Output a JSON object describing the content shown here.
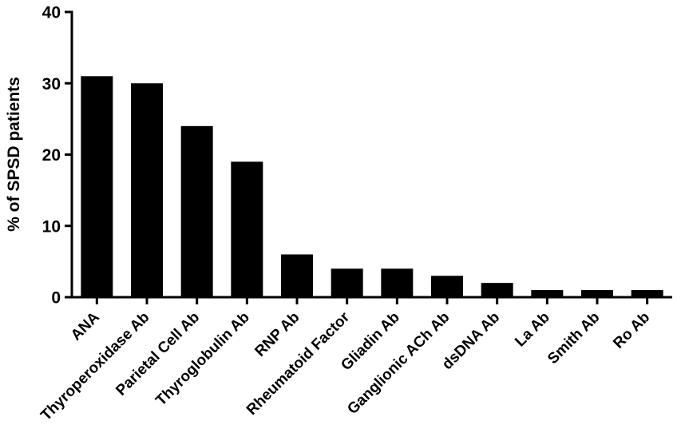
{
  "chart_data": {
    "type": "bar",
    "title": "",
    "xlabel": "",
    "ylabel": "% of SPSD patients",
    "categories": [
      "ANA",
      "Thyroperoxidase Ab",
      "Parietal Cell Ab",
      "Thyroglobulin Ab",
      "RNP Ab",
      "Rheumatoid Factor",
      "Gliadin Ab",
      "Ganglionic ACh Ab",
      "dsDNA Ab",
      "La Ab",
      "Smith Ab",
      "Ro Ab"
    ],
    "values": [
      31,
      30,
      24,
      19,
      6,
      4,
      4,
      3,
      2,
      1,
      1,
      1
    ],
    "ylim": [
      0,
      40
    ],
    "yticks": [
      "0",
      "10",
      "20",
      "30",
      "40"
    ],
    "grid": false,
    "legend": "none",
    "bar_color": "#000000",
    "axis_color": "#000000"
  }
}
